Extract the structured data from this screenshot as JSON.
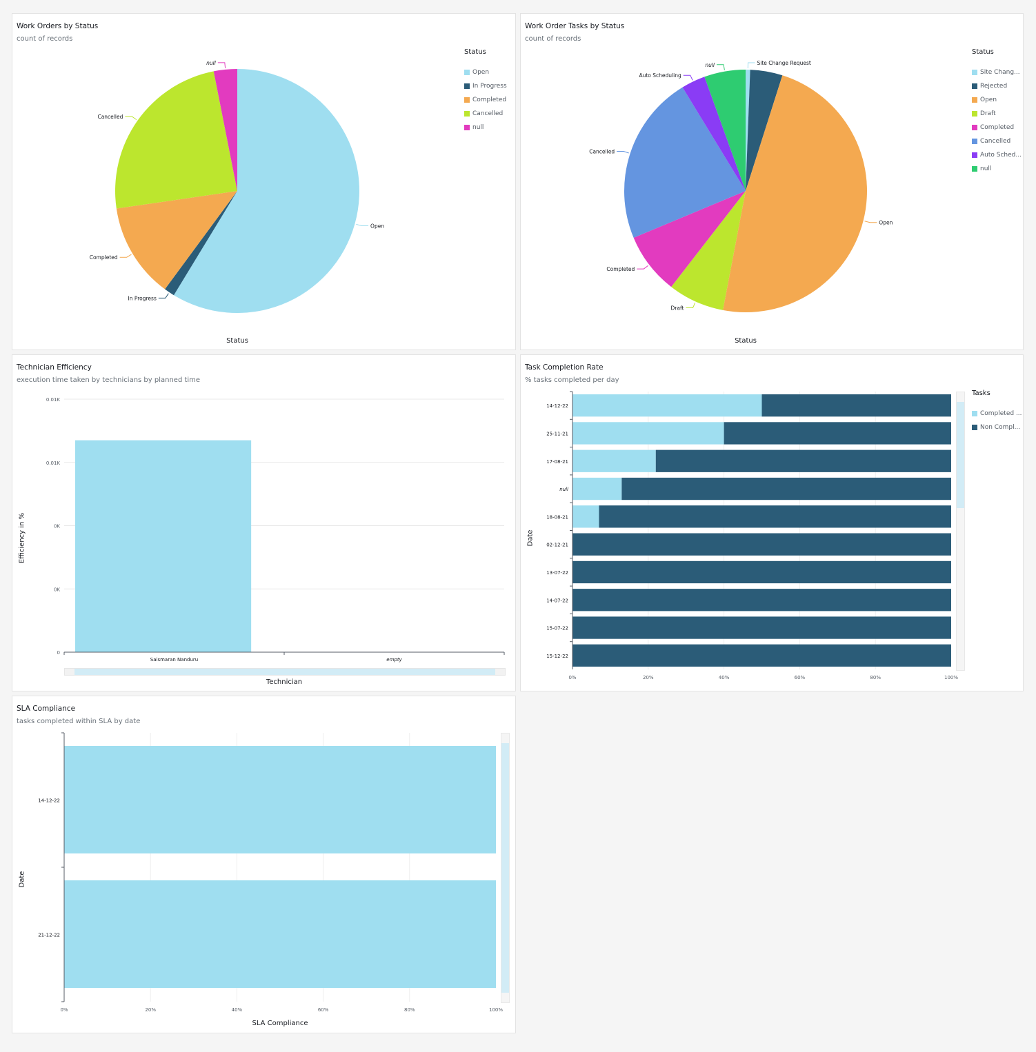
{
  "colors": {
    "light_blue": "#9fdef0",
    "dark_blue": "#2b5c78",
    "orange": "#f4a950",
    "lime": "#bce62e",
    "magenta": "#e23bbf",
    "blue": "#6495e0",
    "purple": "#8a3cf5",
    "green": "#2ecc71"
  },
  "work_orders": {
    "title": "Work Orders by Status",
    "subtitle": "count of records",
    "legend_title": "Status",
    "xlabel": "Status",
    "chart_data": {
      "type": "pie",
      "unit": "percent of total (estimated)",
      "slices": [
        {
          "label": "Open",
          "legend": "Open",
          "value": 58.7,
          "color": "#9fdef0"
        },
        {
          "label": "In Progress",
          "legend": "In Progress",
          "value": 1.4,
          "color": "#2b5c78"
        },
        {
          "label": "Completed",
          "legend": "Completed",
          "value": 12.6,
          "color": "#f4a950"
        },
        {
          "label": "Cancelled",
          "legend": "Cancelled",
          "value": 24.2,
          "color": "#bce62e"
        },
        {
          "label": "null",
          "legend": "null",
          "value": 3.1,
          "color": "#e23bbf"
        }
      ]
    }
  },
  "tasks": {
    "title": "Work Order Tasks by Status",
    "subtitle": "count of records",
    "legend_title": "Status",
    "xlabel": "Status",
    "chart_data": {
      "type": "pie",
      "unit": "percent of total (estimated)",
      "slices": [
        {
          "label": "Site Change Request",
          "legend": "Site Chang...",
          "value": 0.6,
          "color": "#9fdef0"
        },
        {
          "label": "",
          "legend": "Rejected",
          "value": 4.3,
          "color": "#2b5c78"
        },
        {
          "label": "Open",
          "legend": "Open",
          "value": 48.1,
          "color": "#f4a950"
        },
        {
          "label": "Draft",
          "legend": "Draft",
          "value": 7.5,
          "color": "#bce62e"
        },
        {
          "label": "Completed",
          "legend": "Completed",
          "value": 8.2,
          "color": "#e23bbf"
        },
        {
          "label": "Cancelled",
          "legend": "Cancelled",
          "value": 22.6,
          "color": "#6495e0"
        },
        {
          "label": "Auto Scheduling",
          "legend": "Auto Sched...",
          "value": 3.2,
          "color": "#8a3cf5"
        },
        {
          "label": "null",
          "legend": "null",
          "value": 5.5,
          "color": "#2ecc71"
        }
      ]
    }
  },
  "efficiency": {
    "title": "Technician Efficiency",
    "subtitle": "execution time taken by technicians by planned time",
    "chart_data": {
      "type": "bar",
      "categories": [
        "Saismaran Nanduru",
        "empty"
      ],
      "values": [
        6.7,
        0
      ],
      "ylim": [
        0,
        8
      ],
      "yticks": [
        0,
        2,
        4,
        6,
        8
      ],
      "ytick_labels": [
        "0",
        "0K",
        "0K",
        "0.01K",
        "0.01K"
      ],
      "xlabel": "Technician",
      "ylabel": "Efficiency in %",
      "grid": true,
      "color": "#9fdef0"
    }
  },
  "completion": {
    "title": "Task Completion Rate",
    "subtitle": "% tasks completed per day",
    "legend_title": "Tasks",
    "chart_data": {
      "type": "bar",
      "orientation": "horizontal",
      "stacked": "percent",
      "categories": [
        "14-12-22",
        "25-11-21",
        "17-08-21",
        "null",
        "18-08-21",
        "02-12-21",
        "13-07-22",
        "14-07-22",
        "15-07-22",
        "15-12-22"
      ],
      "series": [
        {
          "name": "Completed ...",
          "values": [
            50,
            40,
            22,
            13,
            7,
            0,
            0,
            0,
            0,
            0
          ],
          "color": "#9fdef0"
        },
        {
          "name": "Non Compl...",
          "values": [
            50,
            60,
            78,
            87,
            93,
            100,
            100,
            100,
            100,
            100
          ],
          "color": "#2b5c78"
        }
      ],
      "xticks": [
        "0%",
        "20%",
        "40%",
        "60%",
        "80%",
        "100%"
      ],
      "ylabel": "Date",
      "legend": "right"
    }
  },
  "sla": {
    "title": "SLA Compliance",
    "subtitle": "tasks completed within SLA by date",
    "chart_data": {
      "type": "bar",
      "orientation": "horizontal",
      "categories": [
        "14-12-22",
        "21-12-22"
      ],
      "values": [
        100,
        100
      ],
      "xlim": [
        0,
        100
      ],
      "xticks": [
        "0%",
        "20%",
        "40%",
        "60%",
        "80%",
        "100%"
      ],
      "xlabel": "SLA Compliance",
      "ylabel": "Date",
      "grid": true,
      "color": "#9fdef0"
    }
  }
}
